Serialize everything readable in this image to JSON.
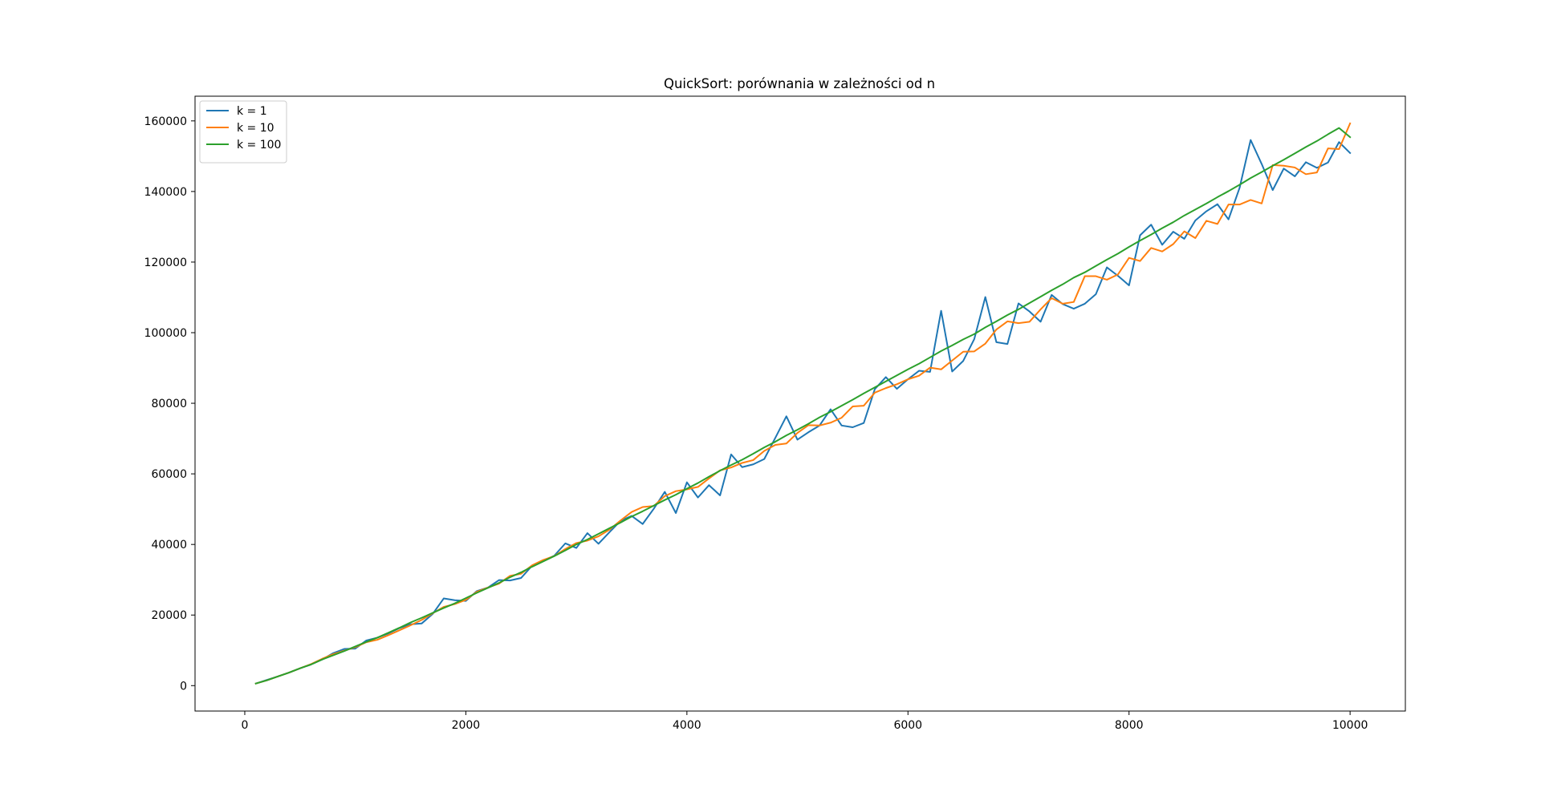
{
  "chart_data": {
    "type": "line",
    "title": "QuickSort: porównania w zależności od n",
    "xlabel": "",
    "ylabel": "",
    "xlim": [
      -450,
      10500
    ],
    "ylim": [
      -7200,
      167000
    ],
    "xticks": [
      0,
      2000,
      4000,
      6000,
      8000,
      10000
    ],
    "yticks": [
      0,
      20000,
      40000,
      60000,
      80000,
      100000,
      120000,
      140000,
      160000
    ],
    "grid": false,
    "legend_position": "top-left",
    "x": [
      100,
      200,
      300,
      400,
      500,
      600,
      700,
      800,
      900,
      1000,
      1100,
      1200,
      1300,
      1400,
      1500,
      1600,
      1700,
      1800,
      1900,
      2000,
      2100,
      2200,
      2300,
      2400,
      2500,
      2600,
      2700,
      2800,
      2900,
      3000,
      3100,
      3200,
      3300,
      3400,
      3500,
      3600,
      3700,
      3800,
      3900,
      4000,
      4100,
      4200,
      4300,
      4400,
      4500,
      4600,
      4700,
      4800,
      4900,
      5000,
      5100,
      5200,
      5300,
      5400,
      5500,
      5600,
      5700,
      5800,
      5900,
      6000,
      6100,
      6200,
      6300,
      6400,
      6500,
      6600,
      6700,
      6800,
      6900,
      7000,
      7100,
      7200,
      7300,
      7400,
      7500,
      7600,
      7700,
      7800,
      7900,
      8000,
      8100,
      8200,
      8300,
      8400,
      8500,
      8600,
      8700,
      8800,
      8900,
      9000,
      9100,
      9200,
      9300,
      9400,
      9500,
      9600,
      9700,
      9800,
      9900,
      10000
    ],
    "series": [
      {
        "name": "k = 1",
        "color": "#1f77b4",
        "values": [
          600,
          1600,
          2600,
          3700,
          4900,
          6000,
          7400,
          9200,
          10400,
          10500,
          12800,
          13600,
          14800,
          16300,
          17400,
          17600,
          20300,
          24700,
          24200,
          24000,
          26800,
          27800,
          29900,
          29800,
          30500,
          34000,
          35400,
          36800,
          40300,
          39000,
          43200,
          40200,
          43500,
          46700,
          48100,
          45800,
          50100,
          54900,
          48900,
          57600,
          53300,
          56800,
          53900,
          65500,
          61900,
          62700,
          64200,
          70200,
          76300,
          69700,
          71800,
          73700,
          78300,
          73700,
          73200,
          74400,
          84000,
          87400,
          84100,
          86800,
          89200,
          88900,
          106200,
          89000,
          92000,
          98200,
          110100,
          97300,
          96800,
          108300,
          106000,
          103100,
          110700,
          108100,
          106800,
          108200,
          110900,
          118500,
          116100,
          113400,
          127600,
          130600,
          124900,
          128600,
          126600,
          131800,
          134400,
          136400,
          132100,
          141000,
          154600,
          147800,
          140400,
          146500,
          144300,
          148300,
          146700,
          148200,
          154000,
          150900
        ]
      },
      {
        "name": "k = 10",
        "color": "#ff7f0e",
        "values": [
          600,
          1500,
          2600,
          3700,
          4900,
          6100,
          7600,
          8900,
          9900,
          10900,
          12300,
          13000,
          14300,
          15700,
          17100,
          18600,
          20500,
          22300,
          23100,
          24300,
          26600,
          27800,
          28900,
          31100,
          31700,
          34100,
          35600,
          36700,
          38700,
          40400,
          41100,
          42300,
          44200,
          46800,
          49200,
          50600,
          50900,
          53700,
          55100,
          55600,
          56300,
          58700,
          61000,
          61800,
          63100,
          63900,
          66500,
          68200,
          68600,
          71600,
          73800,
          73700,
          74500,
          75900,
          79100,
          79300,
          83000,
          84300,
          85400,
          86800,
          87800,
          90100,
          89600,
          92100,
          94600,
          94700,
          96900,
          100900,
          103200,
          102700,
          103100,
          106600,
          109800,
          108200,
          108700,
          116000,
          116000,
          115000,
          116500,
          121200,
          120300,
          124000,
          123000,
          125100,
          128700,
          126800,
          131700,
          130800,
          136300,
          136300,
          137600,
          136600,
          147500,
          147300,
          146800,
          144900,
          145400,
          152200,
          152000,
          159300
        ]
      },
      {
        "name": "k = 100",
        "color": "#2ca02c",
        "values": [
          600,
          1500,
          2600,
          3700,
          4900,
          6000,
          7400,
          8600,
          9800,
          11100,
          12400,
          13600,
          15000,
          16400,
          17900,
          19200,
          20600,
          22000,
          23300,
          24800,
          26300,
          27700,
          29100,
          30700,
          32100,
          33700,
          35200,
          36700,
          38300,
          40000,
          41400,
          43000,
          44600,
          46200,
          47900,
          49400,
          51000,
          52600,
          54100,
          55800,
          57400,
          59200,
          60900,
          62500,
          64000,
          65700,
          67500,
          69100,
          70900,
          72500,
          74200,
          76000,
          77600,
          79300,
          81000,
          82800,
          84500,
          86200,
          87900,
          89600,
          91200,
          93000,
          94800,
          96400,
          98100,
          99600,
          101500,
          103200,
          105000,
          106600,
          108400,
          110200,
          112000,
          113700,
          115600,
          117100,
          118900,
          120700,
          122400,
          124300,
          126100,
          127800,
          129600,
          131300,
          133200,
          134900,
          136600,
          138400,
          140100,
          141900,
          143800,
          145500,
          147300,
          149000,
          150800,
          152600,
          154300,
          156200,
          158000,
          155400
        ]
      }
    ]
  }
}
